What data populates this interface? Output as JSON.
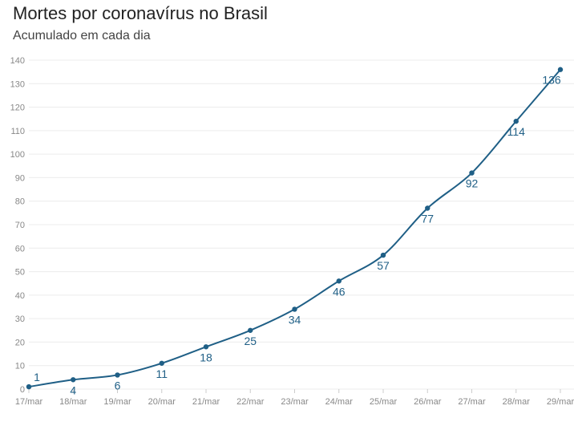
{
  "chart_data": {
    "type": "line",
    "title": "Mortes por coronavírus no Brasil",
    "subtitle": "Acumulado em cada dia",
    "categories": [
      "17/mar",
      "18/mar",
      "19/mar",
      "20/mar",
      "21/mar",
      "22/mar",
      "23/mar",
      "24/mar",
      "25/mar",
      "26/mar",
      "27/mar",
      "28/mar",
      "29/mar"
    ],
    "values": [
      1,
      4,
      6,
      11,
      18,
      25,
      34,
      46,
      57,
      77,
      92,
      114,
      136
    ],
    "yticks": [
      0,
      10,
      20,
      30,
      40,
      50,
      60,
      70,
      80,
      90,
      100,
      110,
      120,
      130,
      140
    ],
    "ylim": [
      0,
      140
    ],
    "grid": true,
    "color": "#1f5f86"
  }
}
